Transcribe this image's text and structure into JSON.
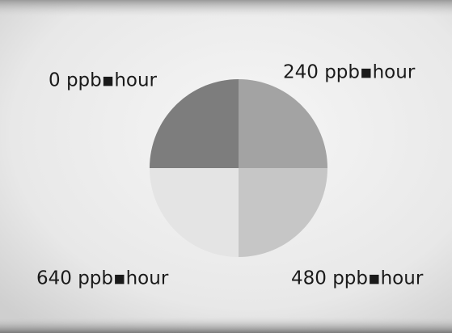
{
  "quadrants": [
    {
      "label": "0 ppb▪hour"
    },
    {
      "label": "240 ppb▪hour"
    },
    {
      "label": "480 ppb▪hour"
    },
    {
      "label": "640 ppb▪hour"
    }
  ]
}
